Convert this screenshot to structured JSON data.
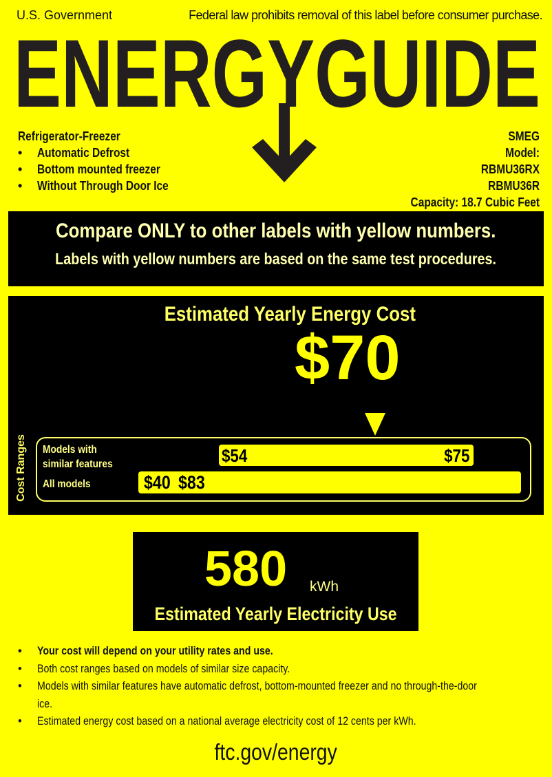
{
  "header": {
    "left_text": "U.S. Government",
    "right_text": "Federal law prohibits removal of this label before consumer purchase.",
    "logo_text": "ENERGYGUIDE"
  },
  "product": {
    "type": "Refrigerator-Freezer",
    "features": [
      "Automatic Defrost",
      "Bottom mounted freezer",
      "Without Through Door Ice"
    ],
    "brand": "SMEG",
    "model_label": "Model:",
    "models": [
      "RBMU36RX",
      "RBMU36R"
    ],
    "capacity": "Capacity: 18.7 Cubic Feet"
  },
  "compare": {
    "line1": "Compare ONLY to other labels with yellow numbers.",
    "line2": "Labels with yellow numbers are based on the same test procedures."
  },
  "cost": {
    "title": "Estimated Yearly Energy Cost",
    "value": "$70",
    "ranges_label": "Cost Ranges",
    "similar_label": "Models with similar features",
    "similar_min": "$54",
    "similar_max": "$75",
    "all_label": "All models",
    "all_min": "$40",
    "all_max": "$83"
  },
  "electricity": {
    "value": "580",
    "unit": "kWh",
    "title": "Estimated Yearly Electricity Use"
  },
  "notes": [
    "Your cost will depend on your utility rates and use.",
    "Both cost ranges based on models of similar size capacity.",
    "Models with similar features have automatic defrost, bottom-mounted freezer and no through-the-door ice.",
    "Estimated energy cost based on a national average electricity cost of 12 cents per kWh."
  ],
  "footer": {
    "url": "ftc.gov/energy"
  },
  "colors": {
    "background": "#ffff00",
    "panel": "#000000",
    "accent": "#ffff00"
  }
}
